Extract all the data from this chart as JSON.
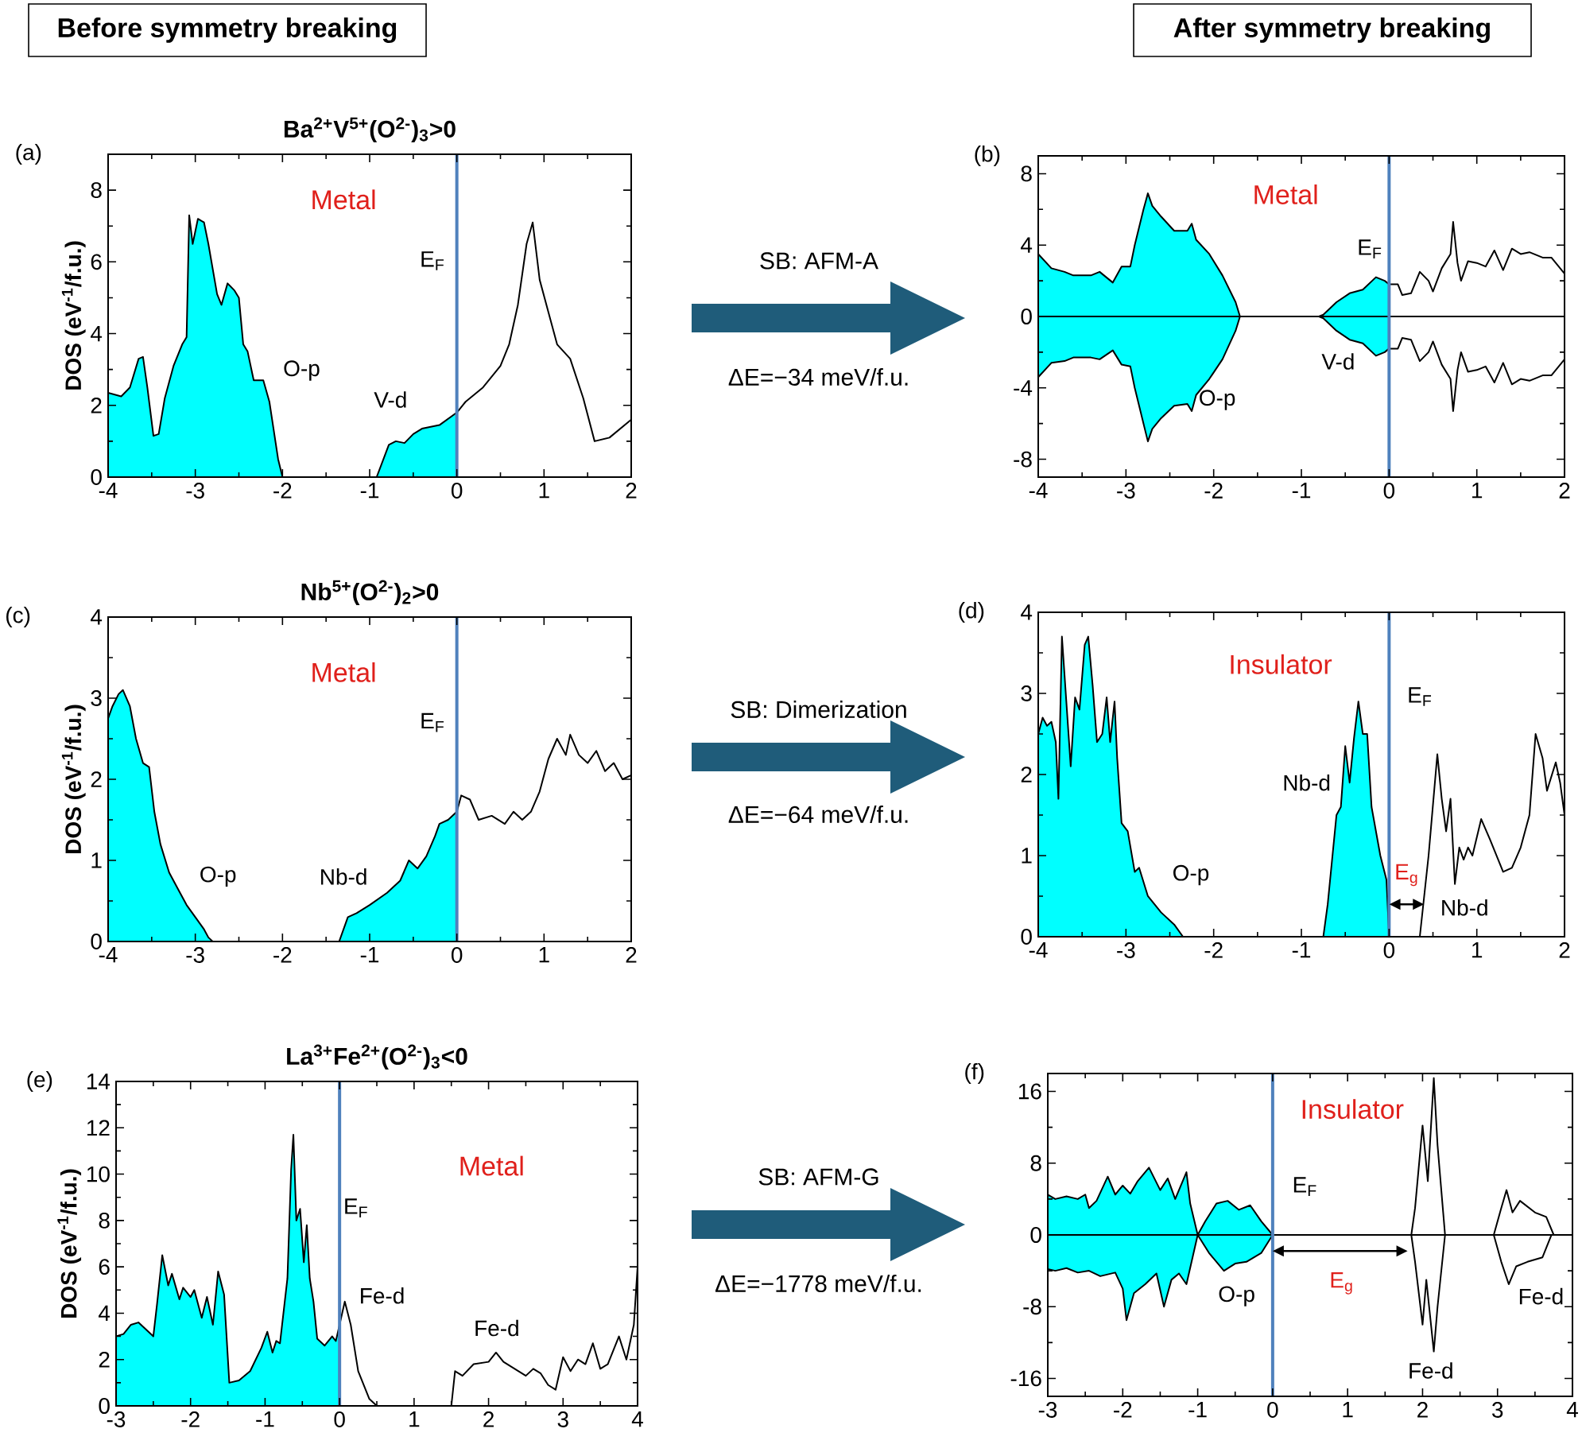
{
  "chart_data": [
    {
      "type": "line",
      "title": "Ba$^{2+}$V$^{5+}$(O$^{2-}$)$_{3}$>0",
      "ylabel": "DOS (eV$^{-1}$/f.u.)",
      "xlim": [
        -4,
        2
      ],
      "ylim": [
        0,
        9
      ],
      "xticks": [
        -4,
        -3,
        -2,
        -1,
        0,
        1,
        2
      ],
      "yticks": [
        0,
        2,
        4,
        6,
        8
      ],
      "series": [
        {
          "type": "area",
          "color": "#00ffff",
          "x": [
            -4,
            -3.85,
            -3.75,
            -3.65,
            -3.6,
            -3.55,
            -3.48,
            -3.42,
            -3.35,
            -3.25,
            -3.15,
            -3.1,
            -3.07,
            -3.03,
            -2.97,
            -2.9,
            -2.85,
            -2.75,
            -2.7,
            -2.63,
            -2.55,
            -2.5,
            -2.45,
            -2.4,
            -2.33,
            -2.22,
            -2.15,
            -2.05,
            -2.0,
            -0.92,
            -0.78,
            -0.7,
            -0.6,
            -0.5,
            -0.4,
            -0.2,
            0
          ],
          "values": [
            2.35,
            2.25,
            2.5,
            3.3,
            3.35,
            2.5,
            1.15,
            1.2,
            2.2,
            3.1,
            3.7,
            3.9,
            7.3,
            6.5,
            7.2,
            7.1,
            6.5,
            5.1,
            4.8,
            5.4,
            5.2,
            5.0,
            3.7,
            3.5,
            2.7,
            2.7,
            2.1,
            0.5,
            0,
            0,
            0.9,
            1.0,
            0.95,
            1.2,
            1.35,
            1.45,
            1.8
          ]
        },
        {
          "type": "line",
          "color": "#000000",
          "x": [
            0,
            0.1,
            0.3,
            0.5,
            0.6,
            0.7,
            0.8,
            0.87,
            0.95,
            1.05,
            1.15,
            1.3,
            1.45,
            1.58,
            1.75,
            2.0
          ],
          "values": [
            1.8,
            2.1,
            2.5,
            3.1,
            3.7,
            4.8,
            6.5,
            7.1,
            5.5,
            4.6,
            3.7,
            3.3,
            2.2,
            1.0,
            1.1,
            1.6
          ]
        }
      ],
      "ref_lines": [
        {
          "axis": "x",
          "value": 0,
          "color": "#4f81bd"
        }
      ],
      "annotations": [
        "(a)",
        "Metal",
        "E$_{F}$",
        "O-p",
        "V-d"
      ]
    },
    {
      "type": "line",
      "xlim": [
        -4,
        2
      ],
      "ylim": [
        -9,
        9
      ],
      "xticks": [
        -4,
        -3,
        -2,
        -1,
        0,
        1,
        2
      ],
      "yticks": [
        -8,
        -4,
        0,
        4,
        8
      ],
      "series": [
        {
          "type": "area",
          "color": "#00ffff",
          "x": [
            -4,
            -3.85,
            -3.7,
            -3.6,
            -3.4,
            -3.3,
            -3.15,
            -3.05,
            -2.95,
            -2.9,
            -2.8,
            -2.75,
            -2.7,
            -2.6,
            -2.45,
            -2.3,
            -2.25,
            -2.2,
            -2.05,
            -1.9,
            -1.75,
            -1.7,
            -0.8,
            -0.75,
            -0.6,
            -0.45,
            -0.3,
            -0.15,
            -0.05,
            0
          ],
          "values": [
            3.5,
            2.7,
            2.5,
            2.3,
            2.3,
            2.5,
            1.9,
            2.8,
            2.8,
            4.0,
            6.0,
            6.9,
            6.2,
            5.6,
            4.8,
            4.8,
            5.2,
            4.3,
            3.5,
            2.3,
            0.8,
            0,
            0,
            0.1,
            0.8,
            1.3,
            1.5,
            2.2,
            2.0,
            1.8
          ]
        },
        {
          "type": "area",
          "color": "#00ffff",
          "x": [
            -4,
            -3.85,
            -3.7,
            -3.6,
            -3.4,
            -3.3,
            -3.15,
            -3.05,
            -2.95,
            -2.9,
            -2.8,
            -2.75,
            -2.7,
            -2.6,
            -2.45,
            -2.3,
            -2.25,
            -2.2,
            -2.05,
            -1.9,
            -1.75,
            -1.7,
            -0.8,
            -0.75,
            -0.6,
            -0.45,
            -0.3,
            -0.15,
            -0.05,
            0
          ],
          "values": [
            -3.4,
            -2.6,
            -2.5,
            -2.3,
            -2.3,
            -2.4,
            -1.9,
            -2.7,
            -2.8,
            -4.0,
            -6.0,
            -7.0,
            -6.3,
            -5.7,
            -5.0,
            -4.9,
            -5.3,
            -4.4,
            -3.5,
            -2.4,
            -0.8,
            0,
            0,
            -0.1,
            -0.8,
            -1.3,
            -1.5,
            -2.2,
            -2.0,
            -1.8
          ]
        },
        {
          "type": "line",
          "color": "#000000",
          "x": [
            0,
            0.1,
            0.15,
            0.25,
            0.35,
            0.45,
            0.5,
            0.6,
            0.7,
            0.73,
            0.78,
            0.82,
            0.9,
            1.0,
            1.1,
            1.2,
            1.3,
            1.4,
            1.5,
            1.6,
            1.75,
            1.85,
            2.0
          ],
          "values": [
            1.8,
            1.8,
            1.2,
            1.3,
            2.5,
            2.0,
            1.4,
            2.7,
            3.5,
            5.3,
            3.0,
            2.0,
            3.1,
            3.0,
            2.8,
            3.7,
            2.6,
            3.8,
            3.5,
            3.6,
            3.3,
            3.3,
            2.4
          ]
        },
        {
          "type": "line",
          "color": "#000000",
          "x": [
            0,
            0.1,
            0.15,
            0.25,
            0.35,
            0.45,
            0.5,
            0.6,
            0.7,
            0.73,
            0.78,
            0.82,
            0.9,
            1.0,
            1.1,
            1.2,
            1.3,
            1.4,
            1.5,
            1.6,
            1.75,
            1.85,
            2.0
          ],
          "values": [
            -1.8,
            -1.8,
            -1.2,
            -1.3,
            -2.5,
            -2.0,
            -1.4,
            -2.7,
            -3.5,
            -5.3,
            -3.0,
            -2.0,
            -3.1,
            -3.0,
            -2.8,
            -3.7,
            -2.6,
            -3.8,
            -3.5,
            -3.6,
            -3.3,
            -3.3,
            -2.4
          ]
        }
      ],
      "ref_lines": [
        {
          "axis": "y",
          "value": 0,
          "color": "#000000"
        },
        {
          "axis": "x",
          "value": 0,
          "color": "#4f81bd"
        }
      ],
      "annotations": [
        "(b)",
        "Metal",
        "E$_{F}$",
        "O-p",
        "V-d"
      ]
    },
    {
      "type": "line",
      "title": "Nb$^{5+}$(O$^{2-}$)$_{2}$>0",
      "ylabel": "DOS (eV$^{-1}$/f.u.)",
      "xlim": [
        -4,
        2
      ],
      "ylim": [
        0,
        4
      ],
      "xticks": [
        -4,
        -3,
        -2,
        -1,
        0,
        1,
        2
      ],
      "yticks": [
        0,
        1,
        2,
        3,
        4
      ],
      "series": [
        {
          "type": "area",
          "color": "#00ffff",
          "x": [
            -4,
            -3.95,
            -3.88,
            -3.83,
            -3.75,
            -3.68,
            -3.6,
            -3.53,
            -3.47,
            -3.4,
            -3.3,
            -3.2,
            -3.1,
            -3.0,
            -2.9,
            -2.85,
            -2.8,
            -1.35,
            -1.25,
            -1.15,
            -1.0,
            -0.8,
            -0.65,
            -0.55,
            -0.45,
            -0.35,
            -0.25,
            -0.2,
            -0.1,
            0
          ],
          "values": [
            2.75,
            2.9,
            3.05,
            3.1,
            2.9,
            2.5,
            2.2,
            2.15,
            1.6,
            1.2,
            0.85,
            0.65,
            0.45,
            0.3,
            0.15,
            0.05,
            0,
            0,
            0.3,
            0.35,
            0.45,
            0.6,
            0.75,
            1.0,
            0.9,
            1.05,
            1.3,
            1.45,
            1.5,
            1.6
          ]
        },
        {
          "type": "line",
          "color": "#000000",
          "x": [
            0,
            0.05,
            0.15,
            0.25,
            0.4,
            0.55,
            0.65,
            0.75,
            0.85,
            0.95,
            1.05,
            1.15,
            1.25,
            1.3,
            1.4,
            1.5,
            1.6,
            1.7,
            1.8,
            1.9,
            2.0
          ],
          "values": [
            1.6,
            1.8,
            1.75,
            1.5,
            1.55,
            1.45,
            1.6,
            1.5,
            1.6,
            1.85,
            2.25,
            2.5,
            2.3,
            2.55,
            2.3,
            2.2,
            2.35,
            2.1,
            2.2,
            2.0,
            2.05
          ]
        }
      ],
      "ref_lines": [
        {
          "axis": "x",
          "value": 0,
          "color": "#4f81bd"
        }
      ],
      "annotations": [
        "(c)",
        "Metal",
        "E$_{F}$",
        "O-p",
        "Nb-d"
      ]
    },
    {
      "type": "line",
      "xlim": [
        -4,
        2
      ],
      "ylim": [
        0,
        4
      ],
      "xticks": [
        -4,
        -3,
        -2,
        -1,
        0,
        1,
        2
      ],
      "yticks": [
        0,
        1,
        2,
        3,
        4
      ],
      "series": [
        {
          "type": "area",
          "color": "#00ffff",
          "x": [
            -4,
            -3.95,
            -3.9,
            -3.85,
            -3.8,
            -3.77,
            -3.73,
            -3.68,
            -3.63,
            -3.58,
            -3.53,
            -3.47,
            -3.43,
            -3.38,
            -3.33,
            -3.27,
            -3.22,
            -3.18,
            -3.13,
            -3.1,
            -3.05,
            -2.98,
            -2.9,
            -2.85,
            -2.75,
            -2.6,
            -2.45,
            -2.35,
            -0.75,
            -0.7,
            -0.6,
            -0.55,
            -0.5,
            -0.45,
            -0.4,
            -0.35,
            -0.3,
            -0.25,
            -0.2,
            -0.1,
            -0.03,
            0
          ],
          "values": [
            2.5,
            2.7,
            2.6,
            2.65,
            2.4,
            1.7,
            3.7,
            2.9,
            2.1,
            2.95,
            2.8,
            3.6,
            3.7,
            3.1,
            2.4,
            2.5,
            2.95,
            2.4,
            2.9,
            2.2,
            1.4,
            1.3,
            0.8,
            0.85,
            0.5,
            0.3,
            0.15,
            0,
            0,
            0.4,
            1.5,
            1.6,
            2.35,
            1.9,
            2.45,
            2.9,
            2.5,
            2.5,
            1.6,
            1.0,
            0.7,
            0
          ]
        },
        {
          "type": "line",
          "color": "#000000",
          "x": [
            0,
            0.35,
            0.45,
            0.55,
            0.6,
            0.65,
            0.7,
            0.75,
            0.8,
            0.85,
            0.9,
            0.95,
            1.05,
            1.15,
            1.3,
            1.4,
            1.5,
            1.6,
            1.67,
            1.75,
            1.8,
            1.9,
            1.95,
            2.0
          ],
          "values": [
            0,
            0,
            1.0,
            2.25,
            1.7,
            1.3,
            1.7,
            0.65,
            1.1,
            0.95,
            1.1,
            1.0,
            1.45,
            1.2,
            0.8,
            0.85,
            1.1,
            1.5,
            2.5,
            2.2,
            1.8,
            2.15,
            1.9,
            1.5
          ]
        }
      ],
      "ref_lines": [
        {
          "axis": "x",
          "value": 0,
          "color": "#4f81bd"
        }
      ],
      "annotations": [
        "(d)",
        "Insulator",
        "E$_{F}$",
        "Nb-d",
        "O-p",
        "Nb-d",
        "E$_{g}$"
      ]
    },
    {
      "type": "line",
      "title": "La$^{3+}$Fe$^{2+}$(O$^{2-}$)$_{3}$<0",
      "ylabel": "DOS (eV$^{-1}$/f.u.)",
      "xlim": [
        -3,
        4
      ],
      "ylim": [
        0,
        14
      ],
      "xticks": [
        -3,
        -2,
        -1,
        0,
        1,
        2,
        3,
        4
      ],
      "yticks": [
        0,
        2,
        4,
        6,
        8,
        10,
        12,
        14
      ],
      "series": [
        {
          "type": "area",
          "color": "#00ffff",
          "x": [
            -3,
            -2.9,
            -2.8,
            -2.7,
            -2.6,
            -2.5,
            -2.45,
            -2.38,
            -2.3,
            -2.25,
            -2.15,
            -2.1,
            -2.0,
            -1.95,
            -1.85,
            -1.78,
            -1.7,
            -1.63,
            -1.55,
            -1.48,
            -1.35,
            -1.2,
            -1.05,
            -0.97,
            -0.9,
            -0.85,
            -0.8,
            -0.7,
            -0.65,
            -0.62,
            -0.58,
            -0.53,
            -0.48,
            -0.44,
            -0.4,
            -0.35,
            -0.3,
            -0.2,
            -0.1,
            -0.05,
            0
          ],
          "values": [
            3.0,
            3.1,
            3.5,
            3.6,
            3.3,
            3.0,
            4.4,
            6.5,
            5.2,
            5.7,
            4.6,
            5.1,
            4.7,
            5.0,
            3.8,
            4.7,
            3.5,
            5.8,
            4.8,
            1.0,
            1.1,
            1.5,
            2.5,
            3.2,
            2.3,
            2.8,
            2.7,
            5.5,
            10.2,
            11.7,
            8.0,
            8.5,
            6.2,
            7.8,
            5.5,
            4.5,
            2.9,
            2.6,
            3.0,
            2.8,
            3.5
          ]
        },
        {
          "type": "line",
          "color": "#000000",
          "x": [
            0,
            0.07,
            0.15,
            0.25,
            0.4,
            0.5,
            1.5,
            1.55,
            1.65,
            1.8,
            2.0,
            2.1,
            2.2,
            2.35,
            2.5,
            2.6,
            2.7,
            2.8,
            2.9,
            3.0,
            3.1,
            3.2,
            3.3,
            3.4,
            3.5,
            3.6,
            3.75,
            3.85,
            3.95,
            4.0
          ],
          "values": [
            3.5,
            4.5,
            3.5,
            1.5,
            0.3,
            0,
            0,
            1.5,
            1.3,
            1.8,
            1.9,
            2.3,
            1.9,
            1.6,
            1.3,
            1.6,
            1.4,
            0.9,
            0.7,
            2.1,
            1.5,
            2.0,
            1.8,
            2.7,
            1.6,
            1.8,
            3.0,
            2.0,
            3.5,
            6.0
          ]
        }
      ],
      "ref_lines": [
        {
          "axis": "x",
          "value": 0,
          "color": "#4f81bd"
        }
      ],
      "annotations": [
        "(e)",
        "Metal",
        "E$_{F}$",
        "Fe-d",
        "Fe-d"
      ]
    },
    {
      "type": "line",
      "xlim": [
        -3,
        4
      ],
      "ylim": [
        -18,
        18
      ],
      "xticks": [
        -3,
        -2,
        -1,
        0,
        1,
        2,
        3,
        4
      ],
      "yticks": [
        -16,
        -8,
        0,
        8,
        16
      ],
      "series": [
        {
          "type": "area",
          "color": "#00ffff",
          "x": [
            -3,
            -2.9,
            -2.75,
            -2.6,
            -2.5,
            -2.45,
            -2.35,
            -2.2,
            -2.1,
            -2.0,
            -1.9,
            -1.8,
            -1.65,
            -1.5,
            -1.4,
            -1.3,
            -1.15,
            -1.1,
            -1.0,
            -0.9,
            -0.75,
            -0.6,
            -0.45,
            -0.3,
            -0.15,
            0
          ],
          "values": [
            4.5,
            4.0,
            4.3,
            4.0,
            4.5,
            3.0,
            3.8,
            6.5,
            4.5,
            5.5,
            4.6,
            6.0,
            7.5,
            5.0,
            6.3,
            4.0,
            7.0,
            3.5,
            0,
            1.5,
            3.5,
            3.8,
            2.8,
            3.3,
            1.5,
            0
          ]
        },
        {
          "type": "area",
          "color": "#00ffff",
          "x": [
            -3,
            -2.9,
            -2.75,
            -2.6,
            -2.45,
            -2.3,
            -2.1,
            -2.0,
            -1.95,
            -1.85,
            -1.7,
            -1.55,
            -1.45,
            -1.35,
            -1.25,
            -1.15,
            -1.0,
            -0.85,
            -0.65,
            -0.5,
            -0.35,
            -0.15,
            0
          ],
          "values": [
            -3.8,
            -4.0,
            -3.7,
            -4.2,
            -4.0,
            -4.6,
            -4.2,
            -6.0,
            -9.5,
            -6.5,
            -5.5,
            -4.3,
            -8.0,
            -5.0,
            -4.3,
            -5.5,
            0,
            -2.0,
            -4.0,
            -3.2,
            -3.0,
            -2.0,
            0
          ]
        },
        {
          "type": "line",
          "color": "#000000",
          "x": [
            0,
            1.85,
            1.9,
            2.0,
            2.07,
            2.15,
            2.2,
            2.3,
            2.95,
            3.05,
            3.12,
            3.2,
            3.3,
            3.5,
            3.65,
            3.75,
            4.0
          ],
          "values": [
            0,
            0,
            3,
            12.2,
            6,
            17.5,
            10,
            0,
            0,
            3,
            5.0,
            2.5,
            3.8,
            2.5,
            2.0,
            0,
            0
          ]
        },
        {
          "type": "line",
          "color": "#000000",
          "x": [
            0,
            1.85,
            1.9,
            2.0,
            2.05,
            2.15,
            2.2,
            2.3,
            2.95,
            3.05,
            3.15,
            3.25,
            3.4,
            3.6,
            3.72,
            4.0
          ],
          "values": [
            0,
            0,
            -3,
            -10,
            -5,
            -13.0,
            -8,
            0,
            0,
            -3,
            -5.5,
            -3.5,
            -3.0,
            -2.5,
            0,
            0
          ]
        }
      ],
      "ref_lines": [
        {
          "axis": "y",
          "value": 0,
          "color": "#000000"
        },
        {
          "axis": "x",
          "value": 0,
          "color": "#4f81bd"
        }
      ],
      "annotations": [
        "(f)",
        "Insulator",
        "E$_{F}$",
        "O-p",
        "Fe-d",
        "Fe-d",
        "E$_{g}$"
      ]
    },
    {
      "type": "other",
      "annotations": [
        "Before symmetry breaking",
        "After symmetry breaking",
        "SB: AFM-A",
        "ΔE=−34 meV/f.u.",
        "SB: Dimerization",
        "ΔE=−64 meV/f.u.",
        "SB: AFM-G",
        "ΔE=−1778 meV/f.u."
      ]
    }
  ]
}
